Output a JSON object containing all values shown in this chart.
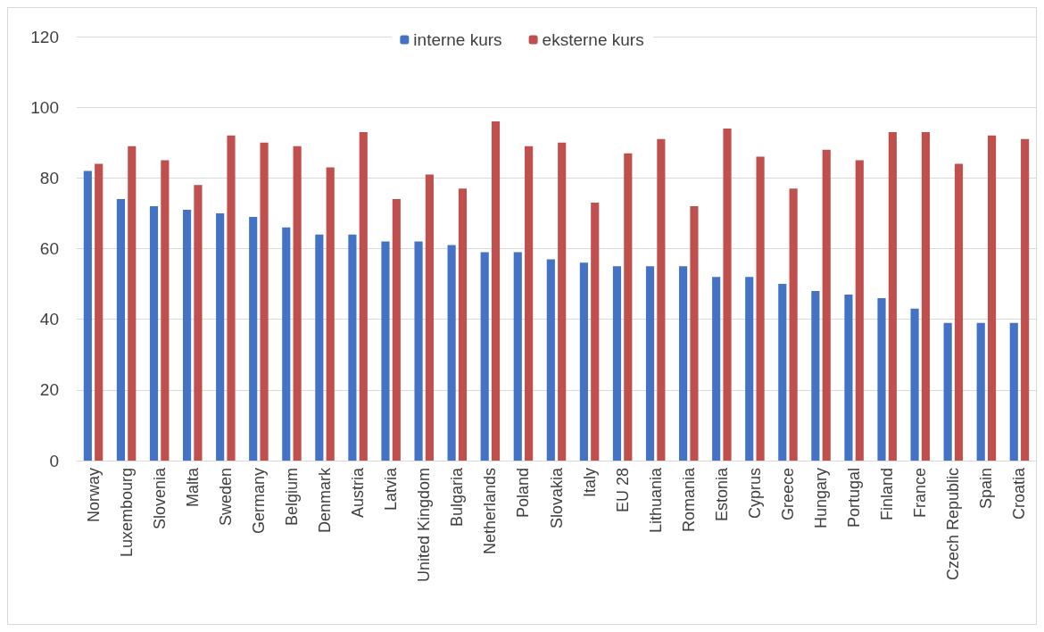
{
  "chart_data": {
    "type": "bar",
    "categories": [
      "Norway",
      "Luxembourg",
      "Slovenia",
      "Malta",
      "Sweden",
      "Germany",
      "Belgium",
      "Denmark",
      "Austria",
      "Latvia",
      "United Kingdom",
      "Bulgaria",
      "Netherlands",
      "Poland",
      "Slovakia",
      "Italy",
      "EU 28",
      "Lithuania",
      "Romania",
      "Estonia",
      "Cyprus",
      "Greece",
      "Hungary",
      "Portugal",
      "Finland",
      "France",
      "Czech Republic",
      "Spain",
      "Croatia"
    ],
    "series": [
      {
        "name": "interne kurs",
        "color": "#4472c4",
        "values": [
          82,
          74,
          72,
          71,
          70,
          69,
          66,
          64,
          64,
          62,
          62,
          61,
          59,
          59,
          57,
          56,
          55,
          55,
          55,
          52,
          52,
          50,
          48,
          47,
          46,
          43,
          39,
          39,
          39
        ]
      },
      {
        "name": "eksterne kurs",
        "color": "#c0504d",
        "values": [
          84,
          89,
          85,
          78,
          92,
          90,
          89,
          83,
          93,
          74,
          81,
          77,
          96,
          89,
          90,
          73,
          87,
          91,
          72,
          94,
          86,
          77,
          88,
          85,
          93,
          93,
          84,
          92,
          91
        ]
      }
    ],
    "ylim": [
      0,
      120
    ],
    "yticks": [
      0,
      20,
      40,
      60,
      80,
      100,
      120
    ],
    "grid": "y",
    "legend": "top"
  }
}
